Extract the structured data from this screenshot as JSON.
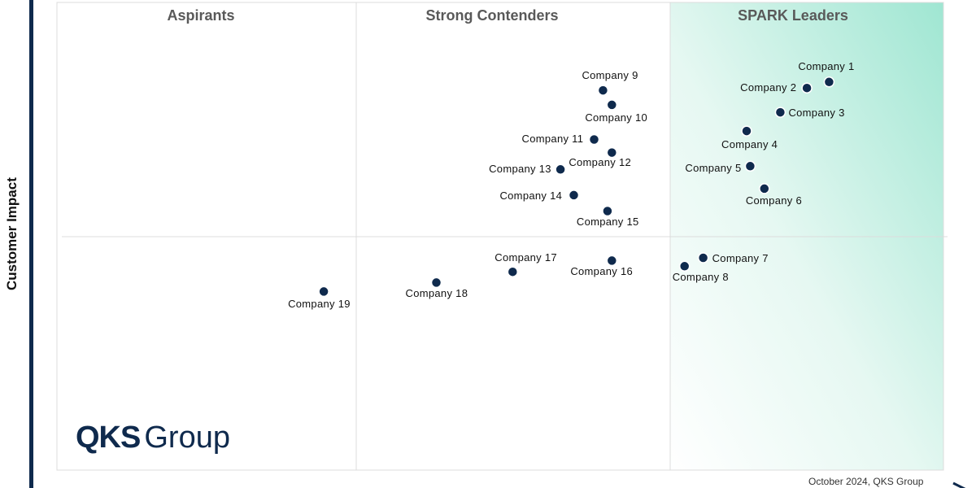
{
  "chart_data": {
    "type": "scatter",
    "title": "",
    "ylabel": "Customer Impact",
    "xlabel": "",
    "xlim": [
      0,
      100
    ],
    "ylim": [
      0,
      100
    ],
    "quadrants": [
      "Aspirants",
      "Strong Contenders",
      "SPARK Leaders"
    ],
    "points": [
      {
        "label": "Company 1",
        "x": 87.1,
        "y": 83.0
      },
      {
        "label": "Company 2",
        "x": 84.6,
        "y": 81.7
      },
      {
        "label": "Company 3",
        "x": 81.6,
        "y": 76.5
      },
      {
        "label": "Company 4",
        "x": 77.8,
        "y": 72.5
      },
      {
        "label": "Company 5",
        "x": 78.2,
        "y": 65.0
      },
      {
        "label": "Company 6",
        "x": 79.8,
        "y": 60.2
      },
      {
        "label": "Company 7",
        "x": 72.9,
        "y": 45.4
      },
      {
        "label": "Company 8",
        "x": 70.8,
        "y": 43.6
      },
      {
        "label": "Company 9",
        "x": 61.6,
        "y": 81.2
      },
      {
        "label": "Company 10",
        "x": 62.6,
        "y": 78.1
      },
      {
        "label": "Company 11",
        "x": 60.6,
        "y": 70.7
      },
      {
        "label": "Company 12",
        "x": 62.6,
        "y": 67.9
      },
      {
        "label": "Company 13",
        "x": 56.8,
        "y": 64.3
      },
      {
        "label": "Company 14",
        "x": 58.3,
        "y": 58.8
      },
      {
        "label": "Company 15",
        "x": 62.1,
        "y": 55.4
      },
      {
        "label": "Company 16",
        "x": 62.6,
        "y": 44.8
      },
      {
        "label": "Company 17",
        "x": 51.4,
        "y": 42.4
      },
      {
        "label": "Company 18",
        "x": 42.8,
        "y": 40.1
      },
      {
        "label": "Company 19",
        "x": 30.1,
        "y": 38.2
      }
    ]
  },
  "footer": "October 2024, QKS Group",
  "logo": {
    "bold": "QKS",
    "light": "Group"
  },
  "colors": {
    "marker": "#0f2a4d",
    "axis": "#0f2a4d",
    "title": "#595959",
    "leader_gradient": "#a8e8d6"
  }
}
